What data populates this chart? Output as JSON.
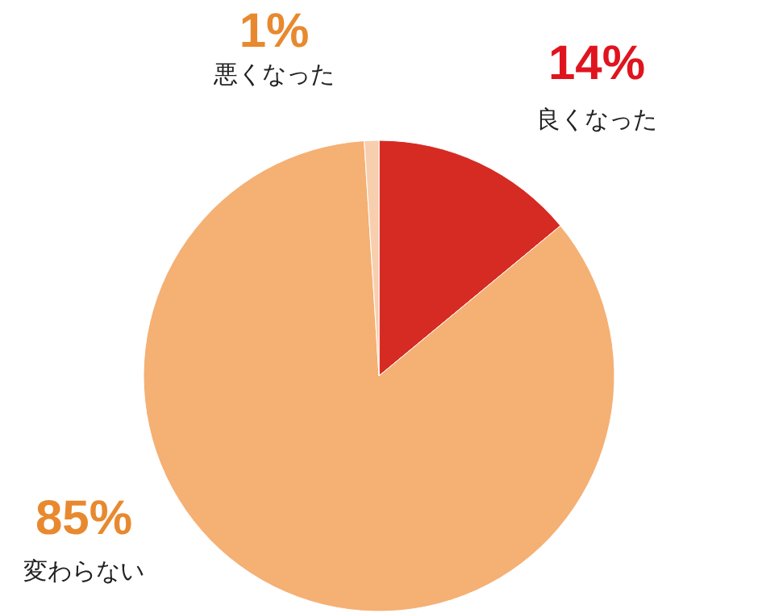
{
  "chart_data": {
    "type": "pie",
    "categories": [
      "良くなった",
      "変わらない",
      "悪くなった"
    ],
    "values": [
      14,
      85,
      1
    ],
    "colors": [
      "#d52b23",
      "#f5b074",
      "#f8cfae"
    ],
    "value_labels": [
      "14%",
      "85%",
      "1%"
    ]
  }
}
